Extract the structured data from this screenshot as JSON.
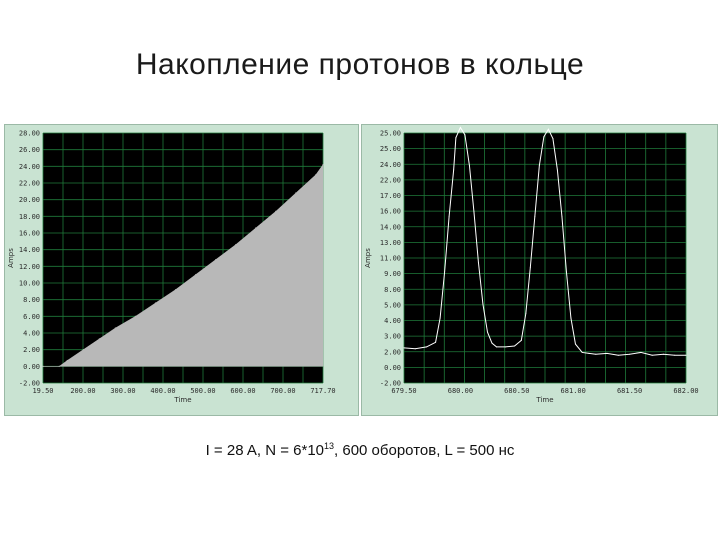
{
  "slide": {
    "title": "Накопление протонов в кольце"
  },
  "caption": {
    "part1": "I = 28 A,  N = 6*10",
    "sup": "13",
    "part2": ", 600 оборотов,  L = 500 нс"
  },
  "colors": {
    "panel_bg": "#c9e3d2",
    "plot_bg": "#000000",
    "grid": "#1f7a3a",
    "fill_left": "#b8b8b8",
    "trace_right": "#ffffff"
  },
  "chart_data": [
    {
      "type": "area",
      "xlabel": "Time",
      "ylabel": "Amps",
      "ylim": [
        -2,
        28
      ],
      "xlim": [
        19.5,
        717.7
      ],
      "y_ticks": [
        "28.00",
        "26.00",
        "24.00",
        "22.00",
        "20.00",
        "18.00",
        "16.00",
        "14.00",
        "12.00",
        "10.00",
        "8.00",
        "6.00",
        "4.00",
        "2.00",
        "0.00",
        "-2.00"
      ],
      "x_ticks": [
        "19.50",
        "200.00",
        "300.00",
        "400.00",
        "500.00",
        "600.00",
        "700.00",
        "717.70"
      ],
      "grid": true,
      "series": [
        {
          "x": [
            19.5,
            60,
            80,
            120,
            160,
            200,
            250,
            300,
            350,
            400,
            450,
            500,
            550,
            600,
            650,
            700,
            717.7
          ],
          "y": [
            0.0,
            0.0,
            0.7,
            2.0,
            3.3,
            4.6,
            6.0,
            7.6,
            9.2,
            11.0,
            12.8,
            14.6,
            16.6,
            18.6,
            20.8,
            23.0,
            24.2
          ]
        }
      ]
    },
    {
      "type": "line",
      "xlabel": "Time",
      "ylabel": "Amps",
      "ylim": [
        -2,
        25
      ],
      "xlim": [
        679.5,
        682
      ],
      "y_ticks": [
        "25.00",
        "25.00",
        "24.00",
        "22.00",
        "17.00",
        "16.00",
        "14.00",
        "13.00",
        "11.00",
        "9.00",
        "8.00",
        "5.00",
        "4.00",
        "3.00",
        "2.00",
        "0.00",
        "-2.00"
      ],
      "x_ticks": [
        "679.50",
        "680.00",
        "680.50",
        "681.00",
        "681.50",
        "682.00"
      ],
      "grid": true,
      "series": [
        {
          "x": [
            679.5,
            679.6,
            679.7,
            679.78,
            679.82,
            679.86,
            679.9,
            679.94,
            679.96,
            680.0,
            680.04,
            680.08,
            680.12,
            680.16,
            680.2,
            680.24,
            680.28,
            680.32,
            680.4,
            680.48,
            680.54,
            680.58,
            680.62,
            680.66,
            680.7,
            680.74,
            680.78,
            680.82,
            680.86,
            680.9,
            680.94,
            680.98,
            681.02,
            681.08,
            681.14,
            681.2,
            681.3,
            681.4,
            681.5,
            681.6,
            681.7,
            681.8,
            681.9,
            682.0
          ],
          "y": [
            1.8,
            1.7,
            1.9,
            2.4,
            5.0,
            10.0,
            16.0,
            21.0,
            24.5,
            25.6,
            24.8,
            21.5,
            16.5,
            11.0,
            6.5,
            3.5,
            2.3,
            1.9,
            1.9,
            2.0,
            2.6,
            5.5,
            10.5,
            16.0,
            21.5,
            24.6,
            25.4,
            24.4,
            21.0,
            16.0,
            10.0,
            5.0,
            2.2,
            1.3,
            1.2,
            1.1,
            1.2,
            1.0,
            1.1,
            1.3,
            1.0,
            1.1,
            1.0,
            1.0
          ]
        }
      ]
    }
  ]
}
